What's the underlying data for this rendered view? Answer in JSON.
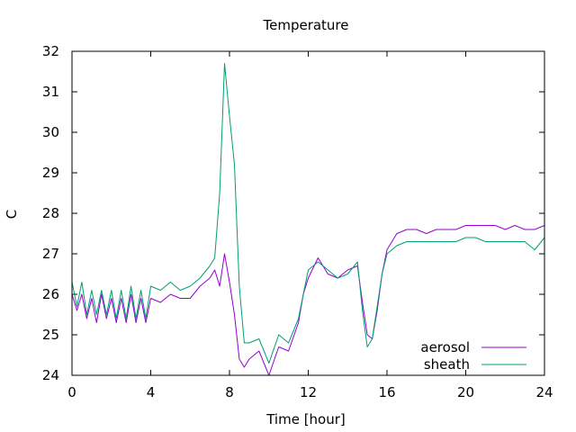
{
  "chart_data": {
    "type": "line",
    "title": "Temperature",
    "xlabel": "Time [hour]",
    "ylabel": "C",
    "xlim": [
      0,
      24
    ],
    "ylim": [
      24,
      32
    ],
    "xticks": [
      0,
      4,
      8,
      12,
      16,
      20,
      24
    ],
    "yticks": [
      24,
      25,
      26,
      27,
      28,
      29,
      30,
      31,
      32
    ],
    "grid": false,
    "legend_position": "bottom-right",
    "series": [
      {
        "name": "aerosol",
        "color": "#9400d3",
        "x": [
          0,
          0.25,
          0.5,
          0.75,
          1,
          1.25,
          1.5,
          1.75,
          2,
          2.25,
          2.5,
          2.75,
          3,
          3.25,
          3.5,
          3.75,
          4,
          4.5,
          5,
          5.5,
          6,
          6.5,
          7,
          7.25,
          7.5,
          7.75,
          8,
          8.25,
          8.5,
          8.75,
          9,
          9.5,
          10,
          10.5,
          11,
          11.5,
          11.75,
          12,
          12.5,
          13,
          13.5,
          14,
          14.5,
          14.75,
          15,
          15.25,
          15.5,
          15.75,
          16,
          16.5,
          17,
          17.5,
          18,
          18.5,
          19,
          19.5,
          20,
          20.5,
          21,
          21.5,
          22,
          22.5,
          23,
          23.5,
          24
        ],
        "values": [
          26.0,
          25.6,
          26.0,
          25.4,
          25.9,
          25.3,
          26.0,
          25.4,
          25.9,
          25.3,
          25.9,
          25.3,
          26.0,
          25.3,
          25.9,
          25.3,
          25.9,
          25.8,
          26.0,
          25.9,
          25.9,
          26.2,
          26.4,
          26.6,
          26.2,
          27.0,
          26.3,
          25.5,
          24.4,
          24.2,
          24.4,
          24.6,
          24.0,
          24.7,
          24.6,
          25.3,
          26.0,
          26.4,
          26.9,
          26.5,
          26.4,
          26.6,
          26.7,
          25.8,
          25.0,
          24.9,
          25.6,
          26.5,
          27.1,
          27.5,
          27.6,
          27.6,
          27.5,
          27.6,
          27.6,
          27.6,
          27.7,
          27.7,
          27.7,
          27.7,
          27.6,
          27.7,
          27.6,
          27.6,
          27.7
        ]
      },
      {
        "name": "sheath",
        "color": "#009e73",
        "x": [
          0,
          0.25,
          0.5,
          0.75,
          1,
          1.25,
          1.5,
          1.75,
          2,
          2.25,
          2.5,
          2.75,
          3,
          3.25,
          3.5,
          3.75,
          4,
          4.5,
          5,
          5.5,
          6,
          6.5,
          7,
          7.25,
          7.5,
          7.75,
          8,
          8.25,
          8.5,
          8.75,
          9,
          9.5,
          10,
          10.5,
          11,
          11.5,
          11.75,
          12,
          12.5,
          13,
          13.5,
          14,
          14.5,
          14.75,
          15,
          15.25,
          15.5,
          15.75,
          16,
          16.5,
          17,
          17.5,
          18,
          18.5,
          19,
          19.5,
          20,
          20.5,
          21,
          21.5,
          22,
          22.5,
          23,
          23.5,
          24
        ],
        "values": [
          26.3,
          25.7,
          26.3,
          25.5,
          26.1,
          25.5,
          26.1,
          25.5,
          26.1,
          25.4,
          26.1,
          25.4,
          26.2,
          25.4,
          26.1,
          25.4,
          26.2,
          26.1,
          26.3,
          26.1,
          26.2,
          26.4,
          26.7,
          26.9,
          28.5,
          31.7,
          30.4,
          29.2,
          26.2,
          24.8,
          24.8,
          24.9,
          24.3,
          25.0,
          24.8,
          25.4,
          26.0,
          26.6,
          26.8,
          26.6,
          26.4,
          26.5,
          26.8,
          25.6,
          24.7,
          24.9,
          25.7,
          26.5,
          27.0,
          27.2,
          27.3,
          27.3,
          27.3,
          27.3,
          27.3,
          27.3,
          27.4,
          27.4,
          27.3,
          27.3,
          27.3,
          27.3,
          27.3,
          27.1,
          27.4
        ]
      }
    ]
  }
}
